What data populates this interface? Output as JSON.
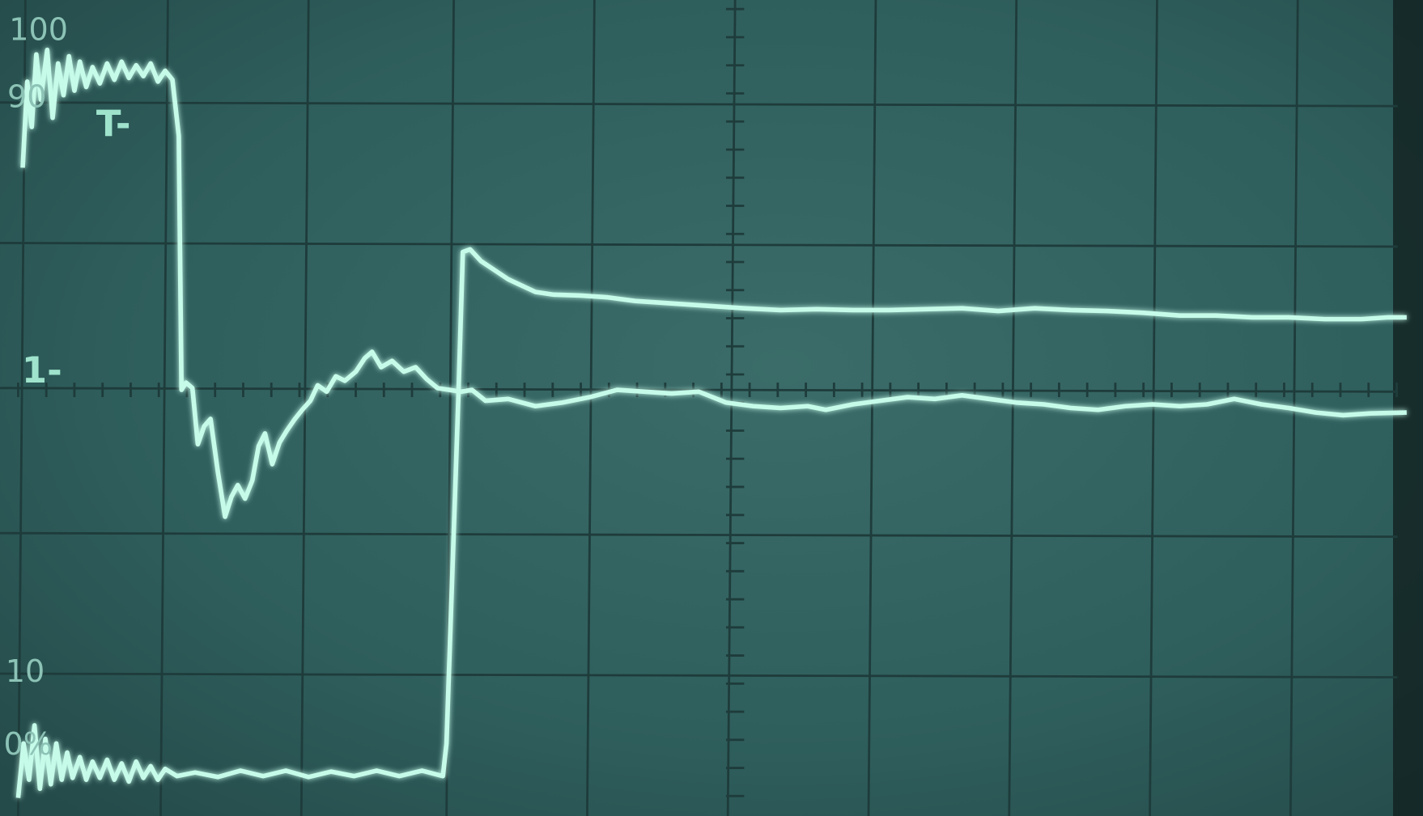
{
  "graticule_labels": [
    "100",
    "90",
    "10",
    "0%"
  ],
  "markers": [
    "T-",
    "1-"
  ]
}
